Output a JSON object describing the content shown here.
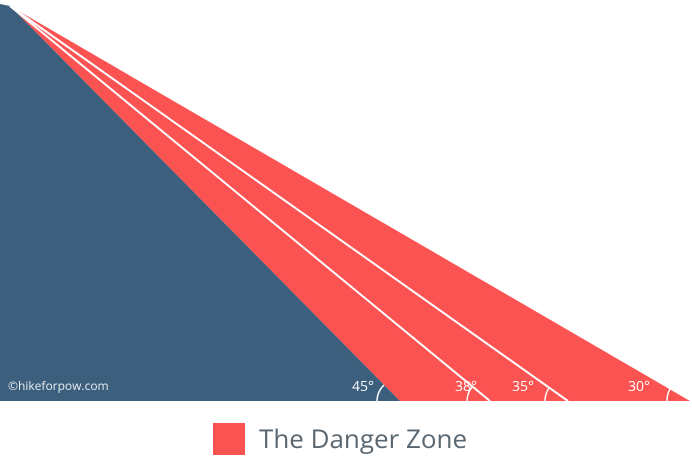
{
  "angles": [
    {
      "label": "45°"
    },
    {
      "label": "38°"
    },
    {
      "label": "35°"
    },
    {
      "label": "30°"
    }
  ],
  "watermark": "©hikeforpow.com",
  "legend": {
    "label": "The Danger Zone"
  }
}
